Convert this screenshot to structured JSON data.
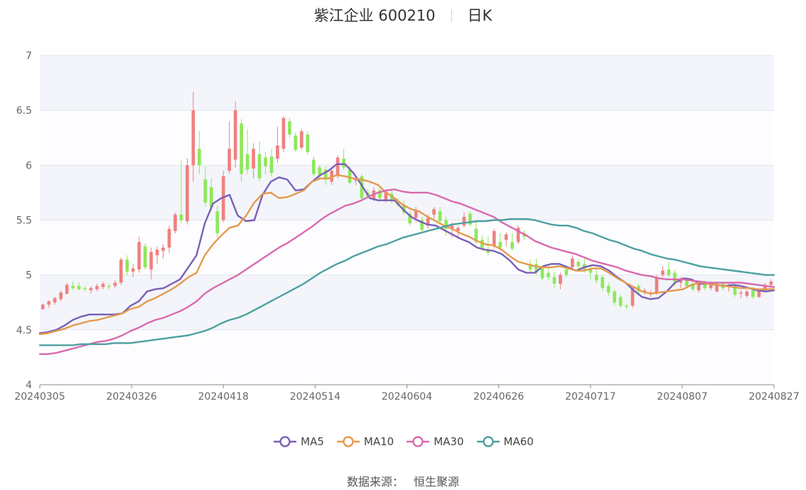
{
  "title": {
    "stock": "紫江企业 600210",
    "period": "日K"
  },
  "source": {
    "label": "数据来源：",
    "value": "恒生聚源"
  },
  "colors": {
    "up": "#f08080",
    "down": "#8ee85a",
    "MA5": "#7b5fb5",
    "MA10": "#e59a4d",
    "MA30": "#d96aad",
    "MA60": "#4f9fa0",
    "band": "#f3f5fb",
    "grid": "#e2e5ee"
  },
  "chart_data": {
    "type": "candlestick",
    "title": "紫江企业 600210 日K",
    "ylim": [
      4,
      7
    ],
    "yticks": [
      "4",
      "4.5",
      "5",
      "5.5",
      "6",
      "6.5",
      "7"
    ],
    "xticks": [
      "20240305",
      "20240326",
      "20240418",
      "20240514",
      "20240604",
      "20240626",
      "20240717",
      "20240807",
      "20240827"
    ],
    "legend": [
      "MA5",
      "MA10",
      "MA30",
      "MA60"
    ],
    "legend_position": "bottom",
    "candles": [
      [
        4.69,
        4.74,
        4.68,
        4.73
      ],
      [
        4.73,
        4.77,
        4.7,
        4.76
      ],
      [
        4.75,
        4.8,
        4.73,
        4.79
      ],
      [
        4.78,
        4.86,
        4.76,
        4.84
      ],
      [
        4.83,
        4.93,
        4.82,
        4.91
      ],
      [
        4.9,
        4.94,
        4.86,
        4.88
      ],
      [
        4.9,
        4.93,
        4.86,
        4.87
      ],
      [
        4.88,
        4.9,
        4.85,
        4.87
      ],
      [
        4.86,
        4.9,
        4.83,
        4.88
      ],
      [
        4.87,
        4.92,
        4.85,
        4.9
      ],
      [
        4.89,
        4.94,
        4.87,
        4.92
      ],
      [
        4.9,
        4.92,
        4.87,
        4.89
      ],
      [
        4.9,
        4.95,
        4.88,
        4.93
      ],
      [
        4.93,
        5.16,
        4.91,
        5.14
      ],
      [
        5.14,
        5.18,
        5.0,
        5.03
      ],
      [
        5.03,
        5.1,
        4.98,
        5.06
      ],
      [
        5.05,
        5.35,
        5.02,
        5.3
      ],
      [
        5.26,
        5.29,
        5.05,
        5.07
      ],
      [
        5.05,
        5.25,
        4.96,
        5.21
      ],
      [
        5.18,
        5.26,
        5.1,
        5.23
      ],
      [
        5.22,
        5.28,
        5.15,
        5.25
      ],
      [
        5.25,
        5.45,
        5.2,
        5.42
      ],
      [
        5.4,
        5.57,
        5.38,
        5.55
      ],
      [
        5.55,
        6.04,
        5.47,
        5.5
      ],
      [
        5.49,
        6.06,
        5.46,
        6.0
      ],
      [
        6.0,
        6.67,
        5.85,
        6.5
      ],
      [
        6.15,
        6.31,
        5.92,
        6.0
      ],
      [
        5.87,
        5.99,
        5.62,
        5.66
      ],
      [
        5.8,
        5.88,
        5.58,
        5.62
      ],
      [
        5.58,
        5.63,
        5.34,
        5.38
      ],
      [
        5.5,
        5.95,
        5.48,
        5.9
      ],
      [
        5.95,
        6.4,
        5.92,
        6.15
      ],
      [
        6.05,
        6.58,
        5.98,
        6.5
      ],
      [
        6.38,
        6.42,
        5.85,
        5.92
      ],
      [
        6.1,
        6.33,
        5.92,
        5.96
      ],
      [
        5.97,
        6.2,
        5.88,
        6.15
      ],
      [
        6.1,
        6.22,
        5.85,
        5.88
      ],
      [
        6.07,
        6.12,
        5.92,
        5.99
      ],
      [
        6.08,
        6.15,
        5.9,
        5.93
      ],
      [
        6.06,
        6.35,
        6.02,
        6.18
      ],
      [
        6.15,
        6.45,
        6.12,
        6.43
      ],
      [
        6.4,
        6.43,
        6.25,
        6.28
      ],
      [
        6.27,
        6.3,
        6.12,
        6.14
      ],
      [
        6.16,
        6.33,
        6.14,
        6.31
      ],
      [
        6.28,
        6.31,
        6.1,
        6.12
      ],
      [
        6.05,
        6.08,
        5.9,
        5.92
      ],
      [
        5.98,
        6.0,
        5.88,
        5.9
      ],
      [
        5.96,
        5.99,
        5.82,
        5.87
      ],
      [
        5.85,
        5.97,
        5.82,
        5.95
      ],
      [
        5.9,
        6.09,
        5.88,
        6.07
      ],
      [
        6.06,
        6.15,
        5.96,
        5.98
      ],
      [
        5.96,
        5.99,
        5.83,
        5.84
      ],
      [
        5.86,
        5.9,
        5.82,
        5.87
      ],
      [
        5.9,
        5.92,
        5.68,
        5.7
      ],
      [
        5.75,
        5.78,
        5.7,
        5.72
      ],
      [
        5.69,
        5.8,
        5.67,
        5.77
      ],
      [
        5.77,
        5.79,
        5.68,
        5.7
      ],
      [
        5.68,
        5.78,
        5.66,
        5.76
      ],
      [
        5.74,
        5.78,
        5.65,
        5.67
      ],
      [
        5.66,
        5.7,
        5.62,
        5.64
      ],
      [
        5.64,
        5.68,
        5.55,
        5.57
      ],
      [
        5.56,
        5.58,
        5.45,
        5.47
      ],
      [
        5.52,
        5.62,
        5.48,
        5.59
      ],
      [
        5.5,
        5.53,
        5.38,
        5.41
      ],
      [
        5.45,
        5.55,
        5.42,
        5.52
      ],
      [
        5.55,
        5.62,
        5.5,
        5.6
      ],
      [
        5.58,
        5.62,
        5.47,
        5.49
      ],
      [
        5.5,
        5.53,
        5.36,
        5.42
      ],
      [
        5.42,
        5.48,
        5.34,
        5.45
      ],
      [
        5.4,
        5.45,
        5.33,
        5.43
      ],
      [
        5.45,
        5.57,
        5.43,
        5.53
      ],
      [
        5.56,
        5.58,
        5.44,
        5.46
      ],
      [
        5.42,
        5.48,
        5.28,
        5.3
      ],
      [
        5.32,
        5.36,
        5.22,
        5.25
      ],
      [
        5.22,
        5.35,
        5.18,
        5.2
      ],
      [
        5.26,
        5.42,
        5.24,
        5.4
      ],
      [
        5.3,
        5.38,
        5.22,
        5.25
      ],
      [
        5.32,
        5.39,
        5.26,
        5.37
      ],
      [
        5.3,
        5.38,
        5.22,
        5.24
      ],
      [
        5.3,
        5.45,
        5.28,
        5.43
      ],
      [
        5.38,
        5.41,
        5.32,
        5.35
      ],
      [
        5.1,
        5.14,
        5.03,
        5.05
      ],
      [
        5.1,
        5.15,
        5.0,
        5.02
      ],
      [
        5.06,
        5.09,
        4.95,
        4.97
      ],
      [
        5.02,
        5.08,
        4.95,
        4.98
      ],
      [
        4.98,
        5.03,
        4.88,
        4.92
      ],
      [
        4.92,
        5.02,
        4.87,
        5.0
      ],
      [
        5.05,
        5.09,
        4.98,
        5.0
      ],
      [
        5.07,
        5.18,
        5.05,
        5.15
      ],
      [
        5.12,
        5.14,
        5.04,
        5.08
      ],
      [
        5.1,
        5.15,
        5.02,
        5.05
      ],
      [
        5.05,
        5.08,
        4.96,
        5.02
      ],
      [
        5.0,
        5.05,
        4.92,
        4.95
      ],
      [
        4.98,
        5.0,
        4.85,
        4.88
      ],
      [
        4.9,
        4.93,
        4.81,
        4.84
      ],
      [
        4.85,
        4.87,
        4.72,
        4.75
      ],
      [
        4.8,
        4.82,
        4.7,
        4.72
      ],
      [
        4.72,
        4.74,
        4.69,
        4.71
      ],
      [
        4.72,
        4.9,
        4.7,
        4.88
      ],
      [
        4.9,
        4.92,
        4.82,
        4.85
      ],
      [
        4.85,
        4.88,
        4.82,
        4.86
      ],
      [
        4.83,
        4.86,
        4.8,
        4.84
      ],
      [
        4.84,
        5.0,
        4.82,
        4.98
      ],
      [
        5.0,
        5.08,
        4.98,
        5.04
      ],
      [
        5.05,
        5.12,
        4.98,
        5.0
      ],
      [
        5.02,
        5.05,
        4.9,
        4.94
      ],
      [
        4.93,
        4.98,
        4.88,
        4.97
      ],
      [
        4.95,
        4.98,
        4.88,
        4.9
      ],
      [
        4.91,
        4.94,
        4.85,
        4.87
      ],
      [
        4.86,
        4.95,
        4.84,
        4.93
      ],
      [
        4.93,
        4.95,
        4.86,
        4.88
      ],
      [
        4.88,
        4.94,
        4.86,
        4.91
      ],
      [
        4.85,
        4.94,
        4.84,
        4.92
      ],
      [
        4.92,
        4.94,
        4.86,
        4.88
      ],
      [
        4.89,
        4.92,
        4.85,
        4.9
      ],
      [
        4.9,
        4.93,
        4.8,
        4.82
      ],
      [
        4.83,
        4.86,
        4.79,
        4.84
      ],
      [
        4.81,
        4.86,
        4.79,
        4.85
      ],
      [
        4.86,
        4.89,
        4.78,
        4.8
      ],
      [
        4.8,
        4.87,
        4.79,
        4.86
      ],
      [
        4.86,
        4.93,
        4.84,
        4.91
      ],
      [
        4.91,
        4.96,
        4.86,
        4.94
      ]
    ],
    "series": [
      {
        "name": "MA5",
        "values": [
          4.47,
          4.48,
          4.5,
          4.54,
          4.59,
          4.62,
          4.64,
          4.64,
          4.64,
          4.64,
          4.65,
          4.72,
          4.76,
          4.85,
          4.87,
          4.88,
          4.92,
          4.96,
          5.07,
          5.18,
          5.47,
          5.65,
          5.7,
          5.73,
          5.54,
          5.49,
          5.5,
          5.73,
          5.85,
          5.89,
          5.87,
          5.77,
          5.78,
          5.85,
          5.91,
          5.95,
          6.01,
          6.01,
          5.93,
          5.82,
          5.7,
          5.68,
          5.68,
          5.68,
          5.6,
          5.53,
          5.49,
          5.46,
          5.45,
          5.41,
          5.37,
          5.33,
          5.3,
          5.25,
          5.23,
          5.22,
          5.19,
          5.13,
          5.05,
          5.02,
          5.02,
          5.08,
          5.1,
          5.1,
          5.07,
          5.04,
          5.07,
          5.09,
          5.08,
          5.04,
          4.98,
          4.93,
          4.86,
          4.8,
          4.78,
          4.79,
          4.85,
          4.93,
          4.97,
          4.96,
          4.92,
          4.92,
          4.91,
          4.9,
          4.91,
          4.9,
          4.88,
          4.86,
          4.85,
          4.86
        ]
      },
      {
        "name": "MA10",
        "values": [
          4.46,
          4.47,
          4.49,
          4.51,
          4.54,
          4.56,
          4.58,
          4.59,
          4.61,
          4.63,
          4.65,
          4.69,
          4.71,
          4.76,
          4.79,
          4.83,
          4.87,
          4.92,
          4.98,
          5.02,
          5.18,
          5.28,
          5.36,
          5.43,
          5.45,
          5.54,
          5.66,
          5.74,
          5.75,
          5.7,
          5.71,
          5.74,
          5.77,
          5.85,
          5.88,
          5.88,
          5.91,
          5.9,
          5.88,
          5.87,
          5.85,
          5.82,
          5.75,
          5.7,
          5.64,
          5.6,
          5.58,
          5.53,
          5.49,
          5.45,
          5.42,
          5.38,
          5.35,
          5.31,
          5.28,
          5.27,
          5.23,
          5.17,
          5.12,
          5.1,
          5.08,
          5.07,
          5.07,
          5.08,
          5.06,
          5.04,
          5.04,
          5.06,
          5.06,
          5.02,
          4.97,
          4.93,
          4.89,
          4.85,
          4.83,
          4.84,
          4.85,
          4.86,
          4.87,
          4.91,
          4.93,
          4.92,
          4.91,
          4.9,
          4.89,
          4.88,
          4.88,
          4.87,
          4.87,
          4.87
        ]
      },
      {
        "name": "MA30",
        "values": [
          4.28,
          4.28,
          4.29,
          4.31,
          4.33,
          4.35,
          4.37,
          4.39,
          4.4,
          4.42,
          4.45,
          4.49,
          4.52,
          4.56,
          4.59,
          4.61,
          4.64,
          4.67,
          4.71,
          4.76,
          4.83,
          4.88,
          4.92,
          4.96,
          5.0,
          5.05,
          5.1,
          5.15,
          5.2,
          5.25,
          5.29,
          5.34,
          5.39,
          5.44,
          5.5,
          5.55,
          5.59,
          5.63,
          5.65,
          5.68,
          5.72,
          5.75,
          5.77,
          5.78,
          5.76,
          5.75,
          5.75,
          5.75,
          5.73,
          5.7,
          5.67,
          5.65,
          5.62,
          5.59,
          5.56,
          5.53,
          5.48,
          5.44,
          5.4,
          5.36,
          5.31,
          5.28,
          5.25,
          5.23,
          5.21,
          5.19,
          5.16,
          5.13,
          5.11,
          5.09,
          5.07,
          5.04,
          5.02,
          5.0,
          4.99,
          4.97,
          4.96,
          4.96,
          4.96,
          4.95,
          4.94,
          4.93,
          4.93,
          4.93,
          4.93,
          4.93,
          4.92,
          4.91,
          4.9,
          4.89
        ]
      },
      {
        "name": "MA60",
        "values": [
          4.36,
          4.36,
          4.36,
          4.36,
          4.36,
          4.37,
          4.37,
          4.37,
          4.37,
          4.38,
          4.38,
          4.38,
          4.39,
          4.4,
          4.41,
          4.42,
          4.43,
          4.44,
          4.45,
          4.47,
          4.49,
          4.52,
          4.56,
          4.59,
          4.61,
          4.64,
          4.68,
          4.72,
          4.76,
          4.8,
          4.84,
          4.88,
          4.92,
          4.97,
          5.02,
          5.06,
          5.1,
          5.13,
          5.17,
          5.2,
          5.23,
          5.26,
          5.28,
          5.31,
          5.34,
          5.36,
          5.38,
          5.4,
          5.42,
          5.44,
          5.46,
          5.47,
          5.48,
          5.49,
          5.49,
          5.5,
          5.5,
          5.51,
          5.51,
          5.51,
          5.5,
          5.48,
          5.46,
          5.45,
          5.45,
          5.43,
          5.4,
          5.38,
          5.35,
          5.32,
          5.3,
          5.27,
          5.24,
          5.22,
          5.19,
          5.17,
          5.15,
          5.14,
          5.12,
          5.1,
          5.08,
          5.07,
          5.06,
          5.05,
          5.04,
          5.03,
          5.02,
          5.01,
          5.0,
          5.0
        ]
      }
    ]
  }
}
